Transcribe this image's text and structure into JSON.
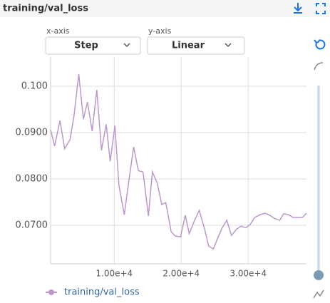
{
  "header": {
    "title": "training/val_loss"
  },
  "controls": {
    "x_axis_label": "x-axis",
    "x_axis_value": "Step",
    "y_axis_label": "y-axis",
    "y_axis_value": "Linear"
  },
  "chart_data": {
    "type": "line",
    "x": [
      500,
      1100,
      1900,
      2600,
      3400,
      4000,
      4700,
      5400,
      6000,
      6700,
      7400,
      8100,
      8800,
      9400,
      10100,
      10700,
      11500,
      12200,
      12900,
      13600,
      14300,
      15100,
      15700,
      16400,
      17100,
      17700,
      18500,
      19100,
      19900,
      20600,
      21200,
      22000,
      22700,
      23500,
      24100,
      24800,
      25400,
      26100,
      26800,
      27500,
      28300,
      28900,
      29700,
      30300,
      31000,
      31800,
      32500,
      33200,
      33900,
      34700,
      35300,
      36000,
      36700,
      37400,
      38100,
      38700
    ],
    "series": [
      {
        "name": "training/val_loss",
        "color": "#bb99c9",
        "values": [
          0.0906,
          0.0871,
          0.0926,
          0.0865,
          0.0885,
          0.0937,
          0.1026,
          0.0929,
          0.0966,
          0.0903,
          0.0992,
          0.0862,
          0.0918,
          0.0838,
          0.0915,
          0.0786,
          0.0723,
          0.0798,
          0.0869,
          0.0818,
          0.0815,
          0.072,
          0.0815,
          0.0792,
          0.0745,
          0.0749,
          0.0686,
          0.0677,
          0.0675,
          0.0722,
          0.0682,
          0.0711,
          0.0732,
          0.0691,
          0.0655,
          0.0649,
          0.0671,
          0.0694,
          0.0711,
          0.0678,
          0.0692,
          0.0698,
          0.0695,
          0.0702,
          0.0717,
          0.0723,
          0.0726,
          0.0722,
          0.0715,
          0.0711,
          0.0725,
          0.0723,
          0.0717,
          0.0717,
          0.0717,
          0.0726
        ]
      }
    ],
    "xlim": [
      500,
      38700
    ],
    "ylim": [
      0.0617,
      0.1063
    ],
    "xticks": [
      {
        "value": 10000,
        "label": "1.00e+4"
      },
      {
        "value": 20000,
        "label": "2.00e+4"
      },
      {
        "value": 30000,
        "label": "3.00e+4"
      }
    ],
    "yticks": [
      {
        "value": 0.07,
        "label": "0.0700"
      },
      {
        "value": 0.08,
        "label": "0.0800"
      },
      {
        "value": 0.09,
        "label": "0.0900"
      },
      {
        "value": 0.1,
        "label": "0.100"
      }
    ],
    "grid": true
  }
}
